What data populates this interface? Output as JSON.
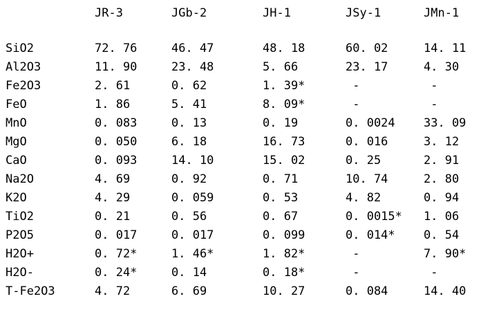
{
  "meta": {
    "description": "Compositional data table of geochemical reference samples",
    "colors": {
      "background": "#ffffff",
      "text": "#000000"
    }
  },
  "table": {
    "columns": [
      "JR-3",
      "JGb-2",
      "JH-1",
      "JSy-1",
      "JMn-1"
    ],
    "rows": [
      {
        "label": "SiO2",
        "values": [
          "72. 76",
          "46. 47",
          "48. 18",
          "60. 02",
          "14. 11"
        ]
      },
      {
        "label": "Al2O3",
        "values": [
          "11. 90",
          "23. 48",
          "5. 66",
          "23. 17",
          "4. 30"
        ]
      },
      {
        "label": "Fe2O3",
        "values": [
          "2. 61",
          "0. 62",
          "1. 39*",
          " -",
          " -"
        ]
      },
      {
        "label": "FeO",
        "values": [
          "1. 86",
          "5. 41",
          "8. 09*",
          " -",
          " -"
        ]
      },
      {
        "label": "MnO",
        "values": [
          "0. 083",
          "0. 13",
          "0. 19",
          "0. 0024",
          "33. 09"
        ]
      },
      {
        "label": "MgO",
        "values": [
          "0. 050",
          "6. 18",
          "16. 73",
          "0. 016",
          "3. 12"
        ]
      },
      {
        "label": "CaO",
        "values": [
          "0. 093",
          "14. 10",
          "15. 02",
          "0. 25",
          "2. 91"
        ]
      },
      {
        "label": "Na2O",
        "values": [
          "4. 69",
          "0. 92",
          "0. 71",
          "10. 74",
          "2. 80"
        ]
      },
      {
        "label": "K2O",
        "values": [
          "4. 29",
          "0. 059",
          "0. 53",
          "4. 82",
          "0. 94"
        ]
      },
      {
        "label": "TiO2",
        "values": [
          "0. 21",
          "0. 56",
          "0. 67",
          "0. 0015*",
          "1. 06"
        ]
      },
      {
        "label": "P2O5",
        "values": [
          "0. 017",
          "0. 017",
          "0. 099",
          "0. 014*",
          "0. 54"
        ]
      },
      {
        "label": "H2O+",
        "values": [
          "0. 72*",
          "1. 46*",
          "1. 82*",
          " -",
          "7. 90*"
        ]
      },
      {
        "label": "H2O-",
        "values": [
          "0. 24*",
          "0. 14",
          "0. 18*",
          " -",
          " -"
        ]
      },
      {
        "label": "T-Fe2O3",
        "values": [
          "4. 72",
          "6. 69",
          "10. 27",
          "0. 084",
          "14. 40"
        ]
      }
    ]
  },
  "chart_data": {
    "type": "table",
    "title": "",
    "columns": [
      "",
      "JR-3",
      "JGb-2",
      "JH-1",
      "JSy-1",
      "JMn-1"
    ],
    "rows": [
      [
        "SiO2",
        "72.76",
        "46.47",
        "48.18",
        "60.02",
        "14.11"
      ],
      [
        "Al2O3",
        "11.90",
        "23.48",
        "5.66",
        "23.17",
        "4.30"
      ],
      [
        "Fe2O3",
        "2.61",
        "0.62",
        "1.39*",
        "-",
        "-"
      ],
      [
        "FeO",
        "1.86",
        "5.41",
        "8.09*",
        "-",
        "-"
      ],
      [
        "MnO",
        "0.083",
        "0.13",
        "0.19",
        "0.0024",
        "33.09"
      ],
      [
        "MgO",
        "0.050",
        "6.18",
        "16.73",
        "0.016",
        "3.12"
      ],
      [
        "CaO",
        "0.093",
        "14.10",
        "15.02",
        "0.25",
        "2.91"
      ],
      [
        "Na2O",
        "4.69",
        "0.92",
        "0.71",
        "10.74",
        "2.80"
      ],
      [
        "K2O",
        "4.29",
        "0.059",
        "0.53",
        "4.82",
        "0.94"
      ],
      [
        "TiO2",
        "0.21",
        "0.56",
        "0.67",
        "0.0015*",
        "1.06"
      ],
      [
        "P2O5",
        "0.017",
        "0.017",
        "0.099",
        "0.014*",
        "0.54"
      ],
      [
        "H2O+",
        "0.72*",
        "1.46*",
        "1.82*",
        "-",
        "7.90*"
      ],
      [
        "H2O-",
        "0.24*",
        "0.14",
        "0.18*",
        "-",
        "-"
      ],
      [
        "T-Fe2O3",
        "4.72",
        "6.69",
        "10.27",
        "0.084",
        "14.40"
      ]
    ]
  }
}
